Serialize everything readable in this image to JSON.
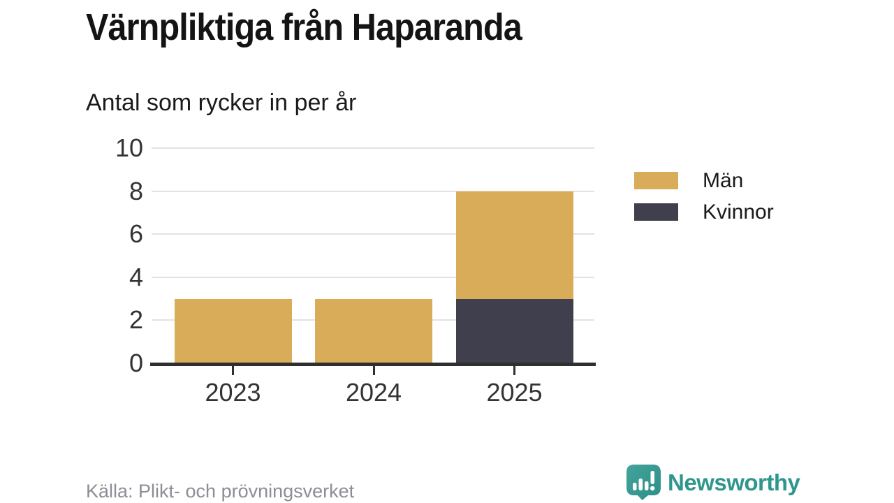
{
  "title": "Värnpliktiga från Haparanda",
  "subtitle": "Antal som rycker in per år",
  "source": "Källa: Plikt- och prövningsverket",
  "brand": {
    "name": "Newsworthy",
    "color": "#2f968e"
  },
  "colors": {
    "bar_men": "#d9ac5a",
    "bar_kvinnor": "#403f4e",
    "grid": "#e3e3e3",
    "axis": "#2f2f2f",
    "brand_teal": "#2f968e"
  },
  "chart_data": {
    "type": "bar",
    "stacked": true,
    "title": "Värnpliktiga från Haparanda",
    "subtitle": "Antal som rycker in per år",
    "categories": [
      "2023",
      "2024",
      "2025"
    ],
    "series": [
      {
        "name": "Män",
        "color": "#d9ac5a",
        "values": [
          3,
          3,
          5
        ]
      },
      {
        "name": "Kvinnor",
        "color": "#403f4e",
        "values": [
          0,
          0,
          3
        ]
      }
    ],
    "stack_bottom_to_top": [
      "Kvinnor",
      "Män"
    ],
    "totals": [
      3,
      3,
      8
    ],
    "xlabel": "",
    "ylabel": "",
    "ylim": [
      0,
      10
    ],
    "yticks": [
      0,
      2,
      4,
      6,
      8,
      10
    ],
    "grid": true,
    "legend_position": "right",
    "source": "Källa: Plikt- och prövningsverket"
  }
}
